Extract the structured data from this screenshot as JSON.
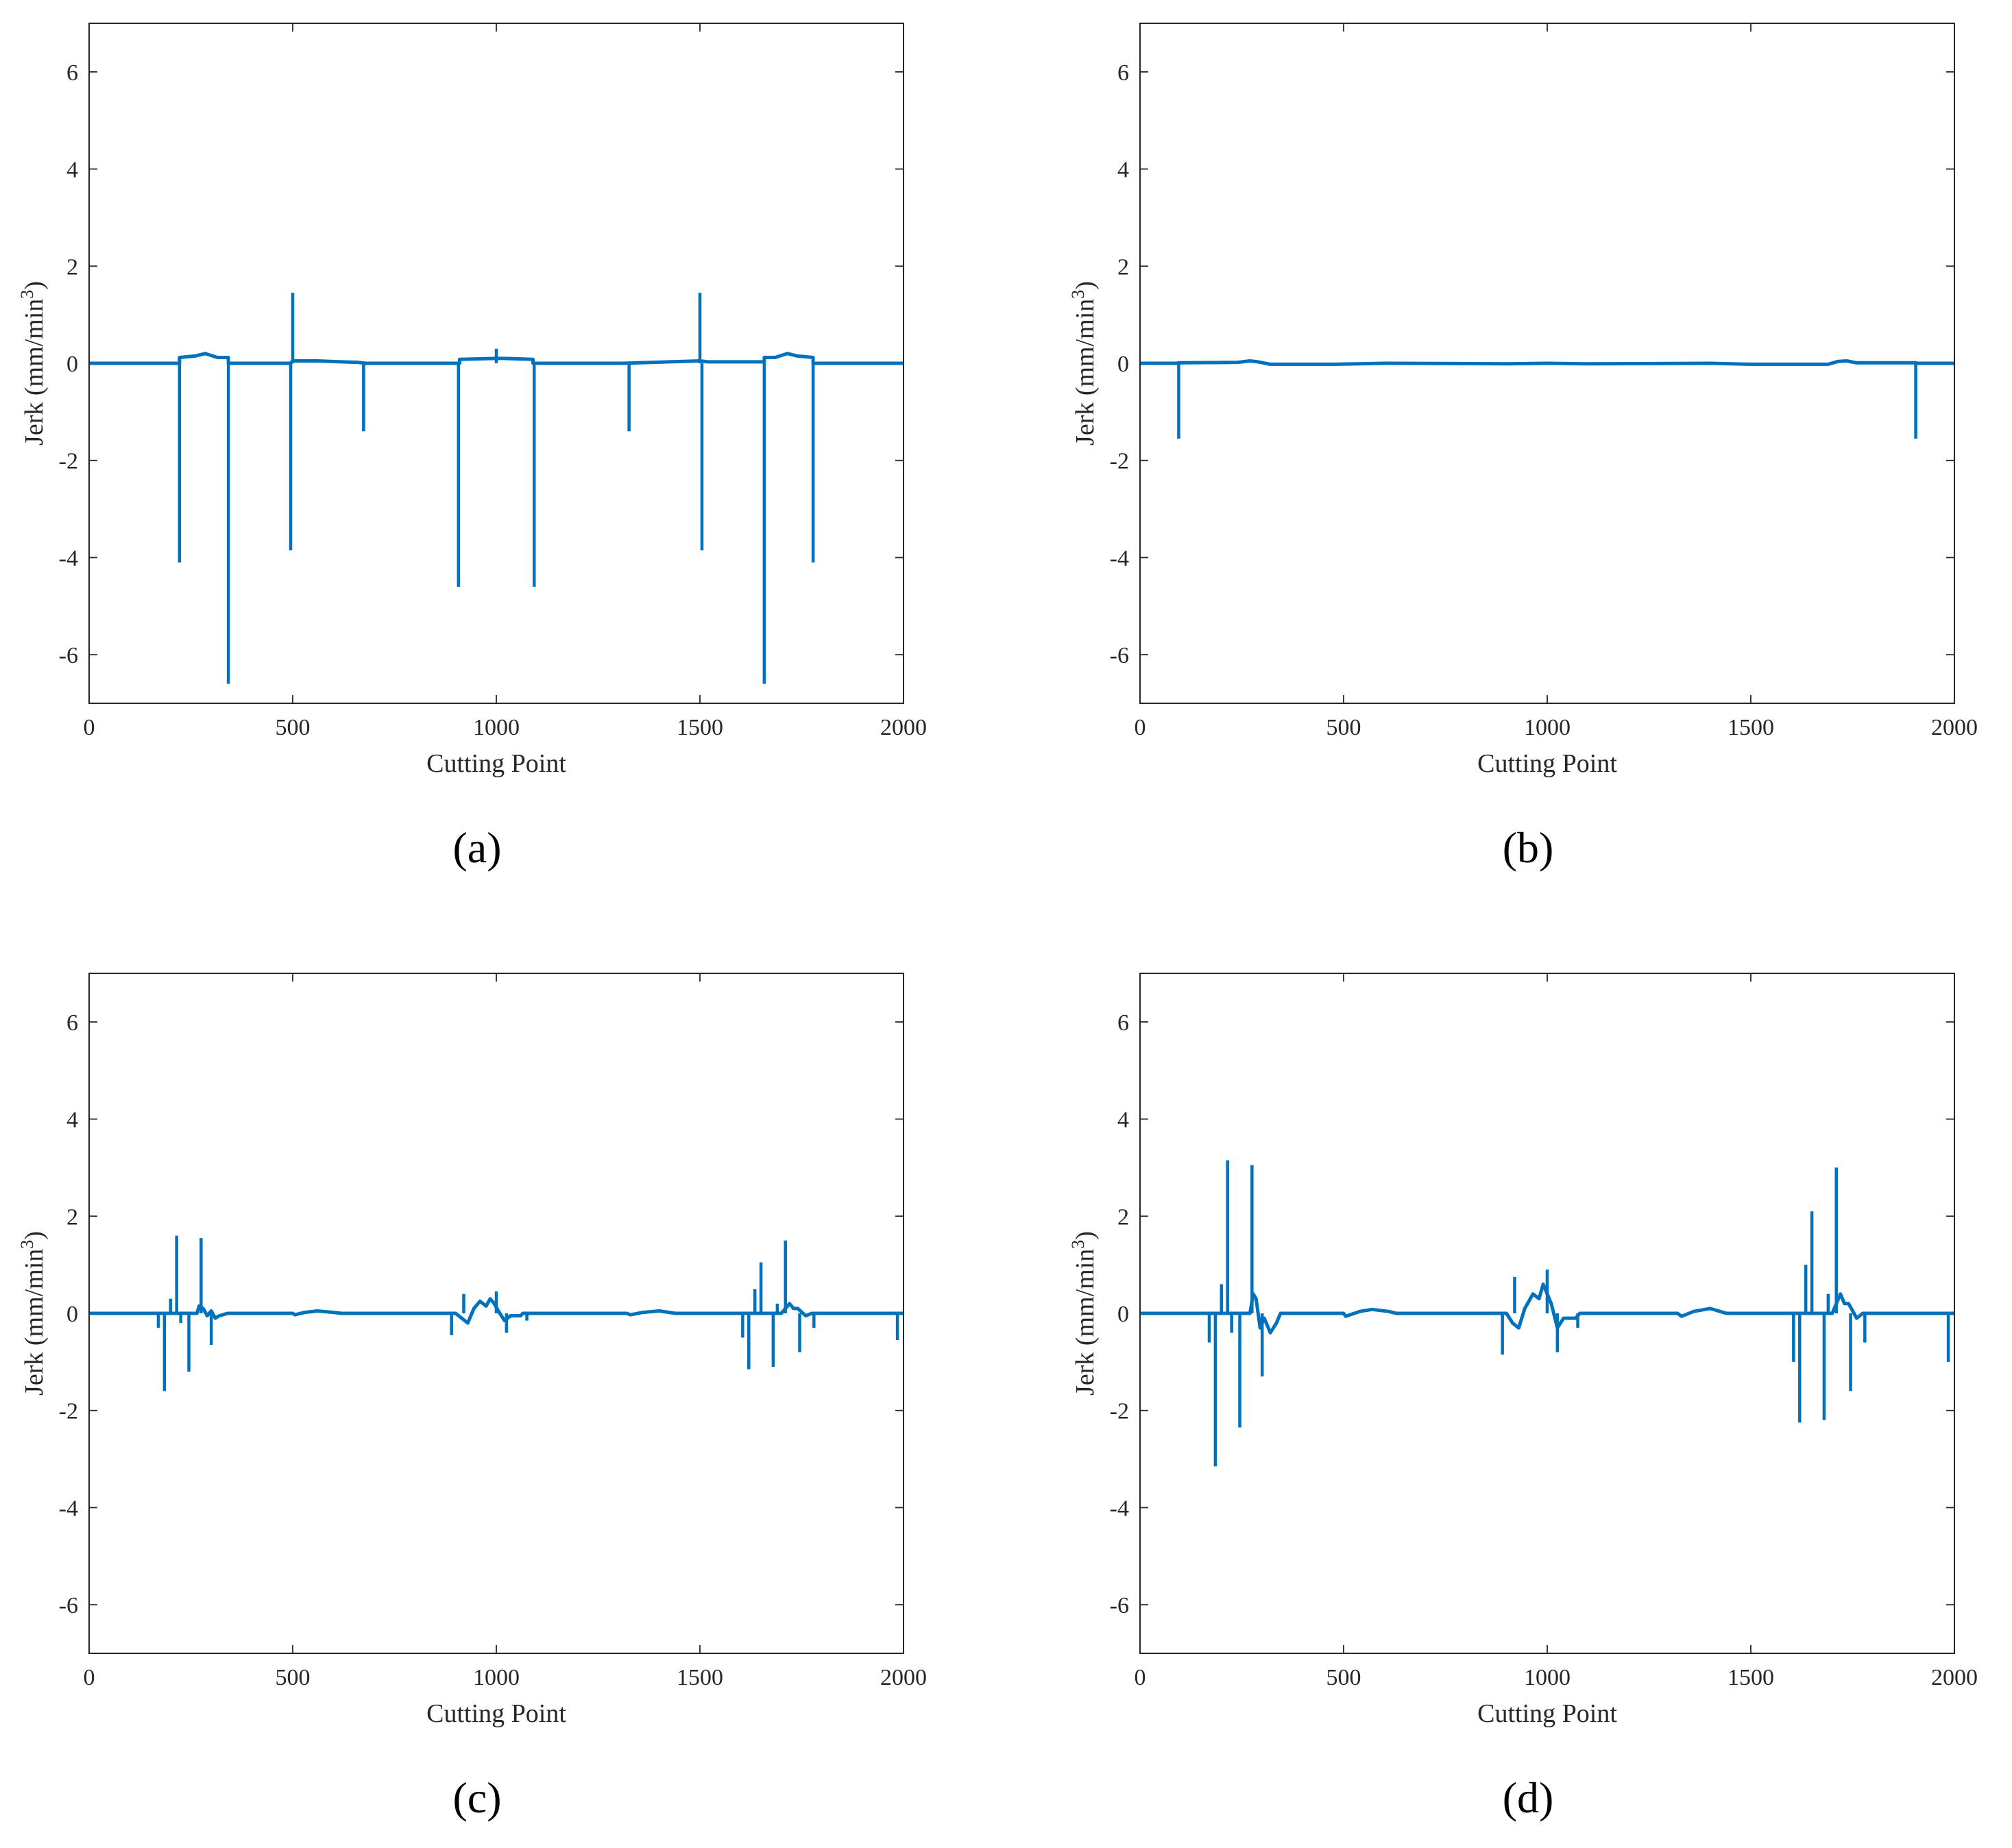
{
  "figure": {
    "colors": {
      "line": "#0072BD",
      "axes": "#262626",
      "background": "#ffffff"
    }
  },
  "chart_data": [
    {
      "type": "line",
      "panel_label": "(a)",
      "xlabel": "Cutting Point",
      "ylabel_main": "Jerk (mm/min",
      "ylabel_sup": "3",
      "ylabel_end": ")",
      "xlim": [
        0,
        2000
      ],
      "ylim": [
        -7,
        7
      ],
      "xticks": [
        0,
        500,
        1000,
        1500,
        2000
      ],
      "yticks": [
        -6,
        -4,
        -2,
        0,
        2,
        4,
        6
      ],
      "baseline": [
        [
          0,
          0
        ],
        [
          222,
          0
        ],
        [
          222,
          0.12
        ],
        [
          260,
          0.15
        ],
        [
          285,
          0.2
        ],
        [
          315,
          0.12
        ],
        [
          342,
          0.12
        ],
        [
          342,
          0
        ],
        [
          495,
          0
        ],
        [
          500,
          0.05
        ],
        [
          560,
          0.05
        ],
        [
          620,
          0.03
        ],
        [
          660,
          0.02
        ],
        [
          680,
          0
        ],
        [
          910,
          0
        ],
        [
          910,
          0.08
        ],
        [
          1000,
          0.1
        ],
        [
          1020,
          0.1
        ],
        [
          1090,
          0.08
        ],
        [
          1090,
          0
        ],
        [
          1310,
          0
        ],
        [
          1500,
          0.05
        ],
        [
          1520,
          0.03
        ],
        [
          1658,
          0.03
        ],
        [
          1658,
          0.12
        ],
        [
          1685,
          0.12
        ],
        [
          1715,
          0.2
        ],
        [
          1740,
          0.15
        ],
        [
          1778,
          0.12
        ],
        [
          1778,
          0
        ],
        [
          2000,
          0
        ]
      ],
      "spikes": [
        [
          222,
          -4.1
        ],
        [
          342,
          -6.6
        ],
        [
          495,
          -3.85
        ],
        [
          500,
          1.45
        ],
        [
          674,
          -1.4
        ],
        [
          907,
          -4.6
        ],
        [
          1000,
          0.3
        ],
        [
          1093,
          -4.6
        ],
        [
          1326,
          -1.4
        ],
        [
          1500,
          1.45
        ],
        [
          1505,
          -3.85
        ],
        [
          1658,
          -6.6
        ],
        [
          1778,
          -4.1
        ]
      ]
    },
    {
      "type": "line",
      "panel_label": "(b)",
      "xlabel": "Cutting Point",
      "ylabel_main": "Jerk (mm/min",
      "ylabel_sup": "3",
      "ylabel_end": ")",
      "xlim": [
        0,
        2000
      ],
      "ylim": [
        -7,
        7
      ],
      "xticks": [
        0,
        500,
        1000,
        1500,
        2000
      ],
      "yticks": [
        -6,
        -4,
        -2,
        0,
        2,
        4,
        6
      ],
      "baseline": [
        [
          0,
          0
        ],
        [
          90,
          0
        ],
        [
          95,
          0.01
        ],
        [
          240,
          0.02
        ],
        [
          270,
          0.05
        ],
        [
          290,
          0.03
        ],
        [
          320,
          -0.02
        ],
        [
          480,
          -0.02
        ],
        [
          600,
          0
        ],
        [
          900,
          -0.01
        ],
        [
          1000,
          0
        ],
        [
          1100,
          -0.01
        ],
        [
          1400,
          0
        ],
        [
          1500,
          -0.02
        ],
        [
          1690,
          -0.02
        ],
        [
          1715,
          0.04
        ],
        [
          1735,
          0.05
        ],
        [
          1760,
          0.01
        ],
        [
          1905,
          0.01
        ],
        [
          1910,
          0
        ],
        [
          2000,
          0
        ]
      ],
      "spikes": [
        [
          95,
          -1.55
        ],
        [
          1905,
          -1.55
        ]
      ]
    },
    {
      "type": "line",
      "panel_label": "(c)",
      "xlabel": "Cutting Point",
      "ylabel_main": "Jerk (mm/min",
      "ylabel_sup": "3",
      "ylabel_end": ")",
      "xlim": [
        0,
        2000
      ],
      "ylim": [
        -7,
        7
      ],
      "xticks": [
        0,
        500,
        1000,
        1500,
        2000
      ],
      "yticks": [
        -6,
        -4,
        -2,
        0,
        2,
        4,
        6
      ],
      "baseline": [
        [
          0,
          0
        ],
        [
          265,
          0
        ],
        [
          270,
          0.15
        ],
        [
          280,
          0.1
        ],
        [
          290,
          -0.05
        ],
        [
          300,
          0.05
        ],
        [
          310,
          -0.1
        ],
        [
          320,
          -0.05
        ],
        [
          340,
          0
        ],
        [
          500,
          0
        ],
        [
          505,
          -0.03
        ],
        [
          530,
          0.02
        ],
        [
          560,
          0.05
        ],
        [
          600,
          0.02
        ],
        [
          620,
          0
        ],
        [
          900,
          0
        ],
        [
          915,
          -0.1
        ],
        [
          930,
          -0.2
        ],
        [
          945,
          0.1
        ],
        [
          960,
          0.25
        ],
        [
          975,
          0.15
        ],
        [
          985,
          0.3
        ],
        [
          995,
          0.2
        ],
        [
          1005,
          0.05
        ],
        [
          1020,
          -0.15
        ],
        [
          1035,
          -0.05
        ],
        [
          1060,
          -0.05
        ],
        [
          1065,
          0
        ],
        [
          1320,
          0
        ],
        [
          1330,
          -0.03
        ],
        [
          1360,
          0.02
        ],
        [
          1400,
          0.05
        ],
        [
          1440,
          0
        ],
        [
          1700,
          0
        ],
        [
          1720,
          0.2
        ],
        [
          1730,
          0.1
        ],
        [
          1740,
          0.1
        ],
        [
          1760,
          -0.05
        ],
        [
          1775,
          0
        ],
        [
          2000,
          0
        ]
      ],
      "spikes": [
        [
          170,
          -0.3
        ],
        [
          185,
          -1.6
        ],
        [
          200,
          0.3
        ],
        [
          215,
          1.6
        ],
        [
          225,
          -0.2
        ],
        [
          245,
          -1.2
        ],
        [
          275,
          1.55
        ],
        [
          300,
          -0.65
        ],
        [
          890,
          -0.45
        ],
        [
          920,
          0.4
        ],
        [
          1000,
          0.45
        ],
        [
          1025,
          -0.4
        ],
        [
          1075,
          -0.15
        ],
        [
          1605,
          -0.5
        ],
        [
          1620,
          -1.15
        ],
        [
          1635,
          0.5
        ],
        [
          1650,
          1.05
        ],
        [
          1680,
          -1.1
        ],
        [
          1690,
          0.2
        ],
        [
          1710,
          1.5
        ],
        [
          1745,
          -0.8
        ],
        [
          1780,
          -0.3
        ],
        [
          1985,
          -0.55
        ]
      ]
    },
    {
      "type": "line",
      "panel_label": "(d)",
      "xlabel": "Cutting Point",
      "ylabel_main": "Jerk (mm/min",
      "ylabel_sup": "3",
      "ylabel_end": ")",
      "xlim": [
        0,
        2000
      ],
      "ylim": [
        -7,
        7
      ],
      "xticks": [
        0,
        500,
        1000,
        1500,
        2000
      ],
      "yticks": [
        -6,
        -4,
        -2,
        0,
        2,
        4,
        6
      ],
      "baseline": [
        [
          0,
          0
        ],
        [
          270,
          0
        ],
        [
          278,
          0.4
        ],
        [
          285,
          0.3
        ],
        [
          295,
          -0.3
        ],
        [
          305,
          -0.1
        ],
        [
          320,
          -0.4
        ],
        [
          335,
          -0.2
        ],
        [
          345,
          0
        ],
        [
          500,
          0
        ],
        [
          505,
          -0.06
        ],
        [
          540,
          0.04
        ],
        [
          570,
          0.08
        ],
        [
          610,
          0.04
        ],
        [
          630,
          0
        ],
        [
          900,
          0
        ],
        [
          915,
          -0.2
        ],
        [
          930,
          -0.3
        ],
        [
          945,
          0.1
        ],
        [
          965,
          0.4
        ],
        [
          980,
          0.3
        ],
        [
          990,
          0.6
        ],
        [
          1000,
          0.4
        ],
        [
          1010,
          0.2
        ],
        [
          1025,
          -0.3
        ],
        [
          1040,
          -0.1
        ],
        [
          1070,
          -0.1
        ],
        [
          1080,
          0
        ],
        [
          1320,
          0
        ],
        [
          1330,
          -0.06
        ],
        [
          1360,
          0.04
        ],
        [
          1400,
          0.1
        ],
        [
          1440,
          0
        ],
        [
          1700,
          0
        ],
        [
          1720,
          0.4
        ],
        [
          1730,
          0.2
        ],
        [
          1740,
          0.2
        ],
        [
          1760,
          -0.1
        ],
        [
          1775,
          0
        ],
        [
          2000,
          0
        ]
      ],
      "spikes": [
        [
          170,
          -0.6
        ],
        [
          185,
          -3.15
        ],
        [
          200,
          0.6
        ],
        [
          215,
          3.15
        ],
        [
          225,
          -0.4
        ],
        [
          245,
          -2.35
        ],
        [
          275,
          3.05
        ],
        [
          300,
          -1.3
        ],
        [
          890,
          -0.85
        ],
        [
          920,
          0.75
        ],
        [
          1000,
          0.9
        ],
        [
          1025,
          -0.8
        ],
        [
          1075,
          -0.3
        ],
        [
          1605,
          -1.0
        ],
        [
          1620,
          -2.25
        ],
        [
          1635,
          1.0
        ],
        [
          1650,
          2.1
        ],
        [
          1680,
          -2.2
        ],
        [
          1690,
          0.4
        ],
        [
          1710,
          3.0
        ],
        [
          1745,
          -1.6
        ],
        [
          1780,
          -0.6
        ],
        [
          1985,
          -1.0
        ]
      ]
    }
  ]
}
